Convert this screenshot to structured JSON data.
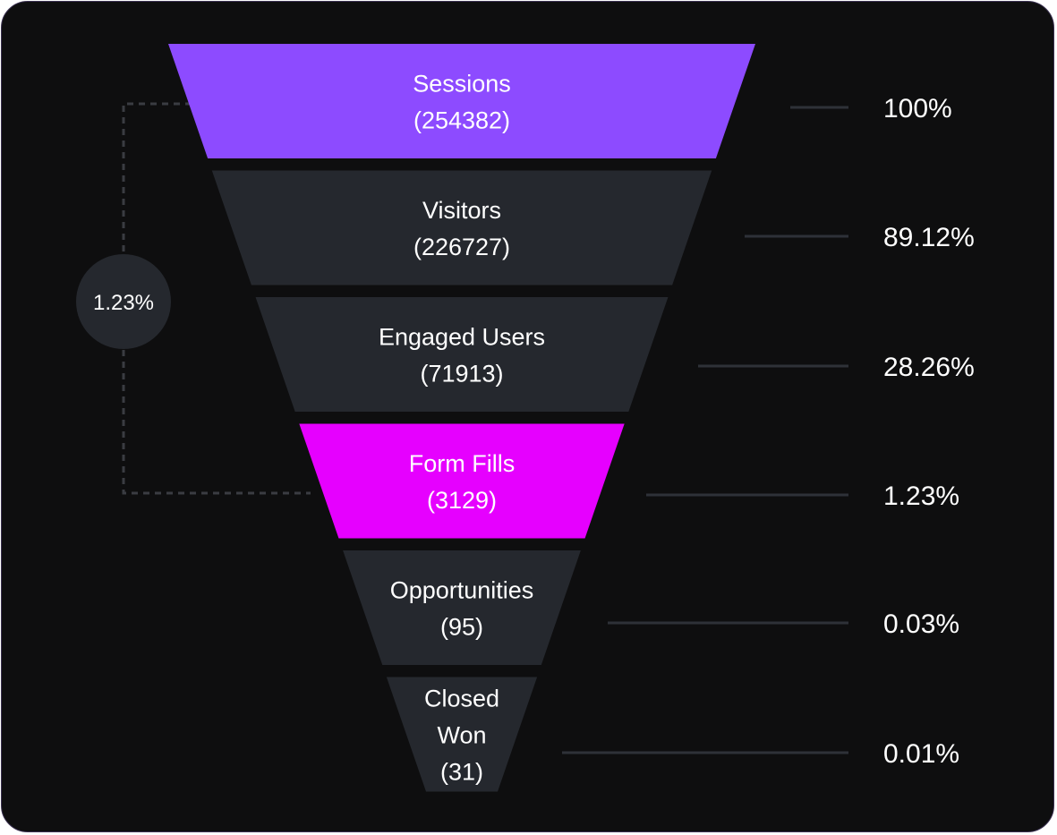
{
  "colors": {
    "background": "#0e0e0f",
    "stage_default": "#25282e",
    "stage_sessions": "#8d4bff",
    "stage_form_fills": "#e600ff",
    "connector_line": "#2e3138",
    "badge": "#25282e"
  },
  "conversion_badge": {
    "label": "1.23%",
    "from_stage": "Sessions",
    "to_stage": "Form Fills"
  },
  "chart_data": {
    "type": "funnel",
    "stages": [
      {
        "name": "Sessions",
        "name_lines": [
          "Sessions"
        ],
        "count_label": "(254382)",
        "value": 254382,
        "percent_label": "100%",
        "percent": 100,
        "color": "#8d4bff"
      },
      {
        "name": "Visitors",
        "name_lines": [
          "Visitors"
        ],
        "count_label": "(226727)",
        "value": 226727,
        "percent_label": "89.12%",
        "percent": 89.12,
        "color": "#25282e"
      },
      {
        "name": "Engaged Users",
        "name_lines": [
          "Engaged Users"
        ],
        "count_label": "(71913)",
        "value": 71913,
        "percent_label": "28.26%",
        "percent": 28.26,
        "color": "#25282e"
      },
      {
        "name": "Form Fills",
        "name_lines": [
          "Form Fills"
        ],
        "count_label": "(3129)",
        "value": 3129,
        "percent_label": "1.23%",
        "percent": 1.23,
        "color": "#e600ff"
      },
      {
        "name": "Opportunities",
        "name_lines": [
          "Opportunities"
        ],
        "count_label": "(95)",
        "value": 95,
        "percent_label": "0.03%",
        "percent": 0.03,
        "color": "#25282e"
      },
      {
        "name": "Closed Won",
        "name_lines": [
          "Closed",
          "Won"
        ],
        "count_label": "(31)",
        "value": 31,
        "percent_label": "0.01%",
        "percent": 0.01,
        "color": "#25282e"
      }
    ]
  }
}
